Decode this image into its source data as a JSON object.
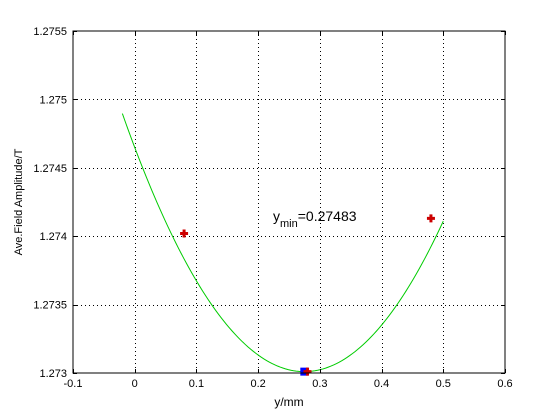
{
  "chart_data": {
    "type": "line",
    "title": "",
    "xlabel": "y/mm",
    "ylabel": "Ave.Field Amplitude/T",
    "xlim": [
      -0.1,
      0.6
    ],
    "ylim": [
      1.273,
      1.2755
    ],
    "xticks": [
      -0.1,
      0,
      0.1,
      0.2,
      0.3,
      0.4,
      0.5,
      0.6
    ],
    "xtick_labels": [
      "-0.1",
      "0",
      "0.1",
      "0.2",
      "0.3",
      "0.4",
      "0.5",
      "0.6"
    ],
    "yticks": [
      1.273,
      1.2735,
      1.274,
      1.2745,
      1.275,
      1.2755
    ],
    "ytick_labels": [
      "1.273",
      "1.2735",
      "1.274",
      "1.2745",
      "1.275",
      "1.2755"
    ],
    "grid": true,
    "grid_style": "dotted",
    "series": [
      {
        "kind": "fit-curve",
        "color": "#00cc00",
        "x_range": [
          -0.02,
          0.5
        ],
        "vertex": [
          0.27483,
          1.27301
        ],
        "curvature": 0.0217,
        "x": [
          -0.02,
          0.0,
          0.05,
          0.1,
          0.15,
          0.2,
          0.25,
          0.27483,
          0.3,
          0.35,
          0.4,
          0.45,
          0.5
        ],
        "y": [
          1.27489,
          1.27465,
          1.27411,
          1.27368,
          1.27335,
          1.27313,
          1.27302,
          1.27301,
          1.27302,
          1.27313,
          1.27335,
          1.27368,
          1.27411
        ]
      },
      {
        "kind": "measured-points",
        "marker": "plus",
        "color": "#cc0000",
        "x": [
          0.08,
          0.28,
          0.48
        ],
        "y": [
          1.27402,
          1.27301,
          1.27413
        ]
      }
    ],
    "minimum_marker": {
      "x": 0.27483,
      "y": 1.27301,
      "color": "#0000ff",
      "marker": "square"
    },
    "annotation": {
      "prefix": "y",
      "subscript": "min",
      "suffix": "=0.27483",
      "at_x": 0.23,
      "at_y": 1.27413
    }
  }
}
